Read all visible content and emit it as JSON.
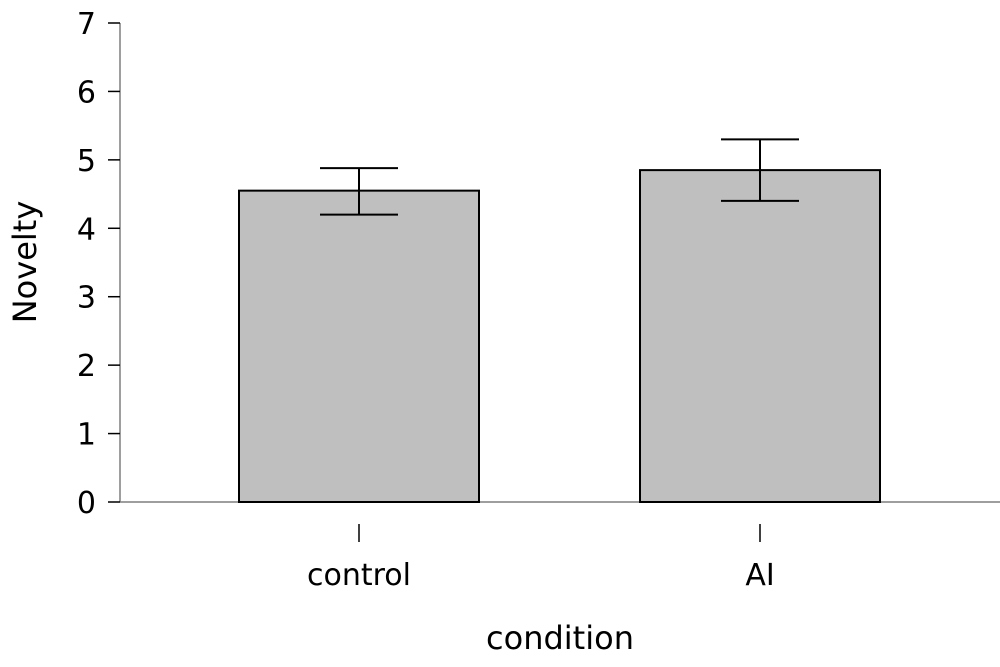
{
  "chart_data": {
    "type": "bar",
    "title": "",
    "xlabel": "condition",
    "ylabel": "Novelty",
    "categories": [
      "control",
      "AI"
    ],
    "values": [
      4.55,
      4.85
    ],
    "error_bars": [
      {
        "lower": 4.2,
        "upper": 4.88
      },
      {
        "lower": 4.4,
        "upper": 5.3
      }
    ],
    "ylim": [
      0,
      7
    ],
    "yticks": [
      "0",
      "1",
      "2",
      "3",
      "4",
      "5",
      "6",
      "7"
    ],
    "grid": false,
    "bar_color": "#bfbfbf",
    "axis_color": "#7f7f7f"
  }
}
